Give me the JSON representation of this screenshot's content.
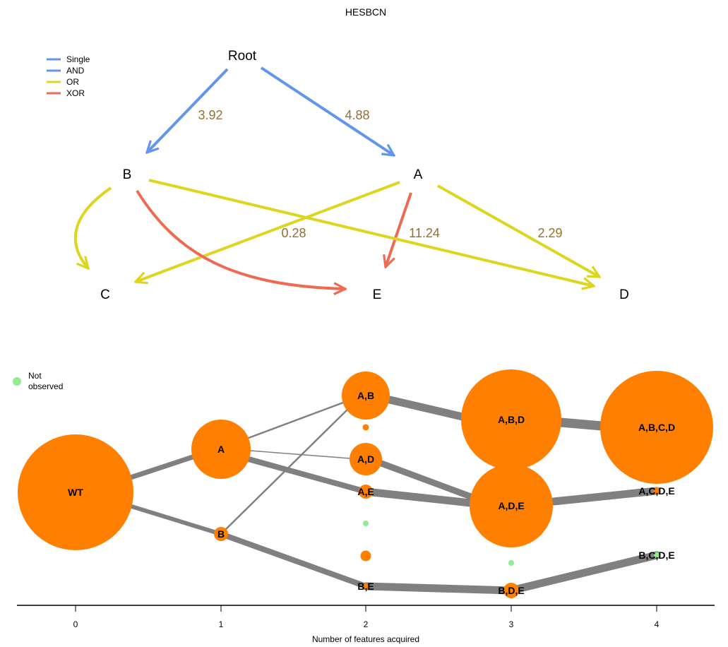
{
  "title": "HESBCN",
  "legend": [
    {
      "label": "Single",
      "color": "#6495ED"
    },
    {
      "label": "AND",
      "color": "#6495ED"
    },
    {
      "label": "OR",
      "color": "#DDD51E"
    },
    {
      "label": "XOR",
      "color": "#EE6A50"
    }
  ],
  "dag": {
    "nodes": [
      {
        "id": "root",
        "label": "Root"
      },
      {
        "id": "B",
        "label": "B"
      },
      {
        "id": "A",
        "label": "A"
      },
      {
        "id": "C",
        "label": "C"
      },
      {
        "id": "E",
        "label": "E"
      },
      {
        "id": "D",
        "label": "D"
      }
    ],
    "edges": [
      {
        "from": "Root",
        "to": "B",
        "type": "Single",
        "label": "3.92"
      },
      {
        "from": "Root",
        "to": "A",
        "type": "Single",
        "label": "4.88"
      },
      {
        "from": "B",
        "to": "C",
        "type": "OR",
        "label": ""
      },
      {
        "from": "A",
        "to": "C",
        "type": "OR",
        "label": "0.28"
      },
      {
        "from": "B",
        "to": "E",
        "type": "XOR",
        "label": ""
      },
      {
        "from": "A",
        "to": "E",
        "type": "XOR",
        "label": "11.24"
      },
      {
        "from": "B",
        "to": "D",
        "type": "OR",
        "label": ""
      },
      {
        "from": "A",
        "to": "D",
        "type": "OR",
        "label": "2.29"
      }
    ]
  },
  "colors": {
    "node_fill": "#FF7F00",
    "not_observed": "#90EE90",
    "edge_gray": "#808080"
  },
  "chart_data": {
    "type": "transition-graph",
    "xlabel": "Number of features acquired",
    "x_ticks": [
      "0",
      "1",
      "2",
      "3",
      "4"
    ],
    "legend_not_observed": "Not\nobserved",
    "states": [
      {
        "name": "WT",
        "features": 0,
        "size": "large",
        "observed": true
      },
      {
        "name": "A",
        "features": 1,
        "size": "medium",
        "observed": true
      },
      {
        "name": "B",
        "features": 1,
        "size": "tiny",
        "observed": true
      },
      {
        "name": "A,B",
        "features": 2,
        "size": "small",
        "observed": true
      },
      {
        "name": "A,D",
        "features": 2,
        "size": "small",
        "observed": true
      },
      {
        "name": "A,E",
        "features": 2,
        "size": "tiny",
        "observed": true
      },
      {
        "name": "B,E",
        "features": 2,
        "size": "dot",
        "observed": true
      },
      {
        "name": "A,B,D",
        "features": 3,
        "size": "large",
        "observed": true
      },
      {
        "name": "A,D,E",
        "features": 3,
        "size": "large",
        "observed": true
      },
      {
        "name": "B,D,E",
        "features": 3,
        "size": "tiny",
        "observed": true
      },
      {
        "name": "A,B,C,D",
        "features": 4,
        "size": "large",
        "observed": true
      },
      {
        "name": "A,C,D,E",
        "features": 4,
        "size": "dot",
        "observed": true
      },
      {
        "name": "B,C,D,E",
        "features": 4,
        "size": "dot",
        "observed": false
      }
    ],
    "transitions": [
      {
        "from": "WT",
        "to": "A",
        "weight": "heavy"
      },
      {
        "from": "WT",
        "to": "B",
        "weight": "heavy"
      },
      {
        "from": "A",
        "to": "A,B",
        "weight": "light"
      },
      {
        "from": "A",
        "to": "A,D",
        "weight": "light"
      },
      {
        "from": "A",
        "to": "A,E",
        "weight": "heavy"
      },
      {
        "from": "B",
        "to": "A,B",
        "weight": "light"
      },
      {
        "from": "B",
        "to": "B,E",
        "weight": "heavy"
      },
      {
        "from": "A,B",
        "to": "A,B,D",
        "weight": "heavy"
      },
      {
        "from": "A,D",
        "to": "A,D,E",
        "weight": "heavy"
      },
      {
        "from": "A,E",
        "to": "A,D,E",
        "weight": "heavy"
      },
      {
        "from": "B,E",
        "to": "B,D,E",
        "weight": "heavy"
      },
      {
        "from": "A,B,D",
        "to": "A,B,C,D",
        "weight": "heavy"
      },
      {
        "from": "A,D,E",
        "to": "A,C,D,E",
        "weight": "heavy"
      },
      {
        "from": "B,D,E",
        "to": "B,C,D,E",
        "weight": "heavy"
      }
    ]
  }
}
